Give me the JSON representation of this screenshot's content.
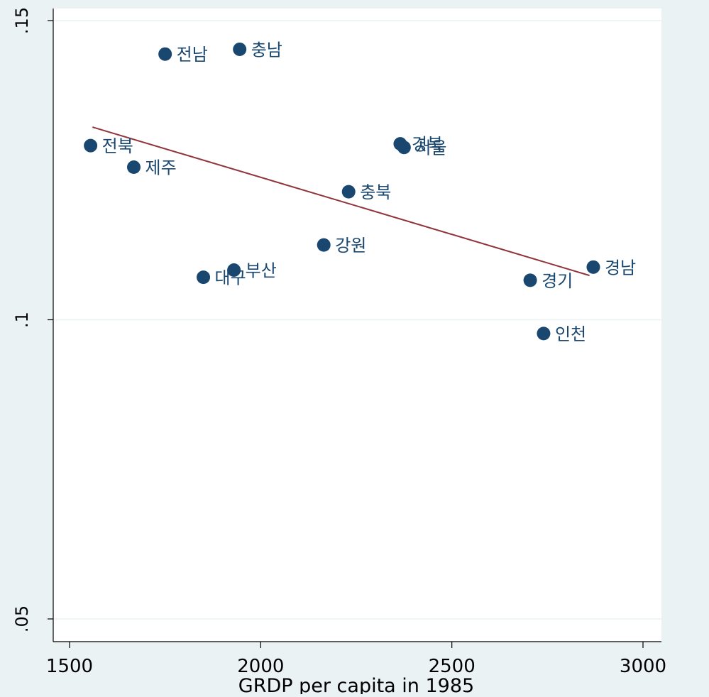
{
  "chart_data": {
    "type": "scatter",
    "title": "",
    "xlabel": "GRDP per capita in 1985",
    "ylabel": "",
    "xlim": [
      1450,
      3050
    ],
    "ylim": [
      0.048,
      0.152
    ],
    "x_ticks": [
      1500,
      2000,
      2500,
      3000
    ],
    "x_tick_labels": [
      "1500",
      "2000",
      "2500",
      "3000"
    ],
    "y_ticks": [
      0.05,
      0.1,
      0.15
    ],
    "y_tick_labels": [
      ".05",
      ".1",
      ".15"
    ],
    "grid": true,
    "legend": "none",
    "colors": {
      "marker": "#1a476f",
      "fit_line": "#90353b",
      "plot_bg": "#ffffff",
      "outer_bg": "#eaf2f3",
      "grid": "#eaf2f3"
    },
    "points": [
      {
        "label": "전남",
        "x": 1750,
        "y": 0.1444
      },
      {
        "label": "충남",
        "x": 1945,
        "y": 0.1452
      },
      {
        "label": "전북",
        "x": 1555,
        "y": 0.1291
      },
      {
        "label": "제주",
        "x": 1668,
        "y": 0.1255
      },
      {
        "label": "경북",
        "x": 2365,
        "y": 0.1294
      },
      {
        "label": "서울",
        "x": 2375,
        "y": 0.1288
      },
      {
        "label": "충북",
        "x": 2230,
        "y": 0.1214
      },
      {
        "label": "강원",
        "x": 2165,
        "y": 0.1125
      },
      {
        "label": "부산",
        "x": 1930,
        "y": 0.1083
      },
      {
        "label": "대구",
        "x": 1850,
        "y": 0.1071
      },
      {
        "label": "경남",
        "x": 2870,
        "y": 0.1088
      },
      {
        "label": "경기",
        "x": 2705,
        "y": 0.1066
      },
      {
        "label": "인천",
        "x": 2740,
        "y": 0.0977
      }
    ],
    "fit_line": {
      "x": [
        1560,
        2860
      ],
      "y": [
        0.1322,
        0.1074
      ]
    }
  }
}
